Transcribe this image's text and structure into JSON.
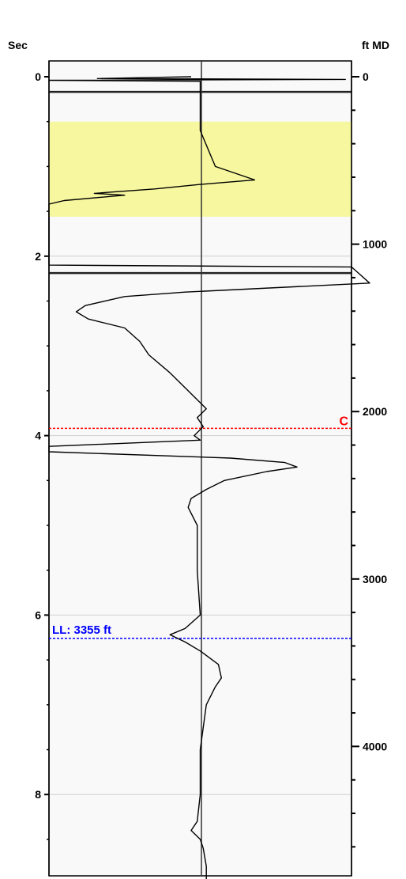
{
  "chart_data": {
    "type": "line",
    "left_axis": {
      "title": "Sec",
      "range": [
        0,
        9.2
      ],
      "major_ticks": [
        0,
        2,
        4,
        6,
        8
      ],
      "tick_labels": [
        "0",
        "2",
        "4",
        "6",
        "8"
      ]
    },
    "right_axis": {
      "title": "ft MD",
      "range": [
        0,
        4880
      ],
      "major_ticks": [
        0,
        1000,
        2000,
        3000,
        4000
      ],
      "tick_labels": [
        "0",
        "1000",
        "2000",
        "3000",
        "4000"
      ],
      "minor_step": 200
    },
    "shaded_band": {
      "color": "#f7f7a0",
      "from_sec": 0.5,
      "to_sec": 1.56
    },
    "gridlines_sec": [
      2,
      4,
      6,
      8
    ],
    "segment_breaks_sec": [
      0.08,
      2.1
    ],
    "annotations": [
      {
        "label": "C",
        "depth_ft": 2100,
        "color": "#ff0000",
        "label_pos": "right"
      },
      {
        "label": "LL: 3355 ft",
        "depth_ft": 3355,
        "color": "#0000ff",
        "label_pos": "left"
      }
    ],
    "series": [
      {
        "points_sec_rel": [
          [
            0.0,
            0.47
          ],
          [
            0.02,
            0.16
          ],
          [
            0.03,
            0.98
          ],
          [
            0.04,
            0.0
          ],
          [
            0.05,
            0.5
          ],
          [
            0.07,
            0.5
          ],
          [
            0.5,
            0.5
          ],
          [
            0.6,
            0.5
          ],
          [
            1.0,
            0.55
          ],
          [
            1.15,
            0.68
          ],
          [
            1.2,
            0.5
          ],
          [
            1.25,
            0.35
          ],
          [
            1.3,
            0.15
          ],
          [
            1.32,
            0.25
          ],
          [
            1.38,
            0.05
          ],
          [
            1.42,
            0.0
          ],
          [
            2.1,
            0.0
          ],
          [
            2.12,
            1.0
          ],
          [
            2.3,
            1.06
          ],
          [
            2.4,
            0.45
          ],
          [
            2.45,
            0.25
          ],
          [
            2.55,
            0.12
          ],
          [
            2.62,
            0.09
          ],
          [
            2.7,
            0.13
          ],
          [
            2.8,
            0.25
          ],
          [
            2.95,
            0.3
          ],
          [
            3.1,
            0.33
          ],
          [
            3.3,
            0.4
          ],
          [
            3.5,
            0.46
          ],
          [
            3.6,
            0.49
          ],
          [
            3.7,
            0.52
          ],
          [
            3.8,
            0.49
          ],
          [
            3.9,
            0.51
          ],
          [
            4.0,
            0.48
          ],
          [
            4.05,
            0.5
          ],
          [
            4.12,
            0.0
          ],
          [
            4.18,
            0.0
          ],
          [
            4.25,
            0.6
          ],
          [
            4.3,
            0.78
          ],
          [
            4.35,
            0.82
          ],
          [
            4.4,
            0.72
          ],
          [
            4.5,
            0.58
          ],
          [
            4.6,
            0.52
          ],
          [
            4.7,
            0.47
          ],
          [
            4.8,
            0.46
          ],
          [
            5.0,
            0.49
          ],
          [
            5.5,
            0.49
          ],
          [
            6.0,
            0.5
          ],
          [
            6.15,
            0.45
          ],
          [
            6.22,
            0.4
          ],
          [
            6.3,
            0.45
          ],
          [
            6.4,
            0.5
          ],
          [
            6.55,
            0.56
          ],
          [
            6.7,
            0.57
          ],
          [
            6.8,
            0.55
          ],
          [
            7.0,
            0.52
          ],
          [
            7.5,
            0.5
          ],
          [
            8.0,
            0.5
          ],
          [
            8.3,
            0.49
          ],
          [
            8.4,
            0.47
          ],
          [
            8.5,
            0.5
          ],
          [
            8.6,
            0.51
          ],
          [
            8.8,
            0.52
          ],
          [
            9.2,
            0.52
          ]
        ],
        "color": "#000000"
      }
    ]
  }
}
